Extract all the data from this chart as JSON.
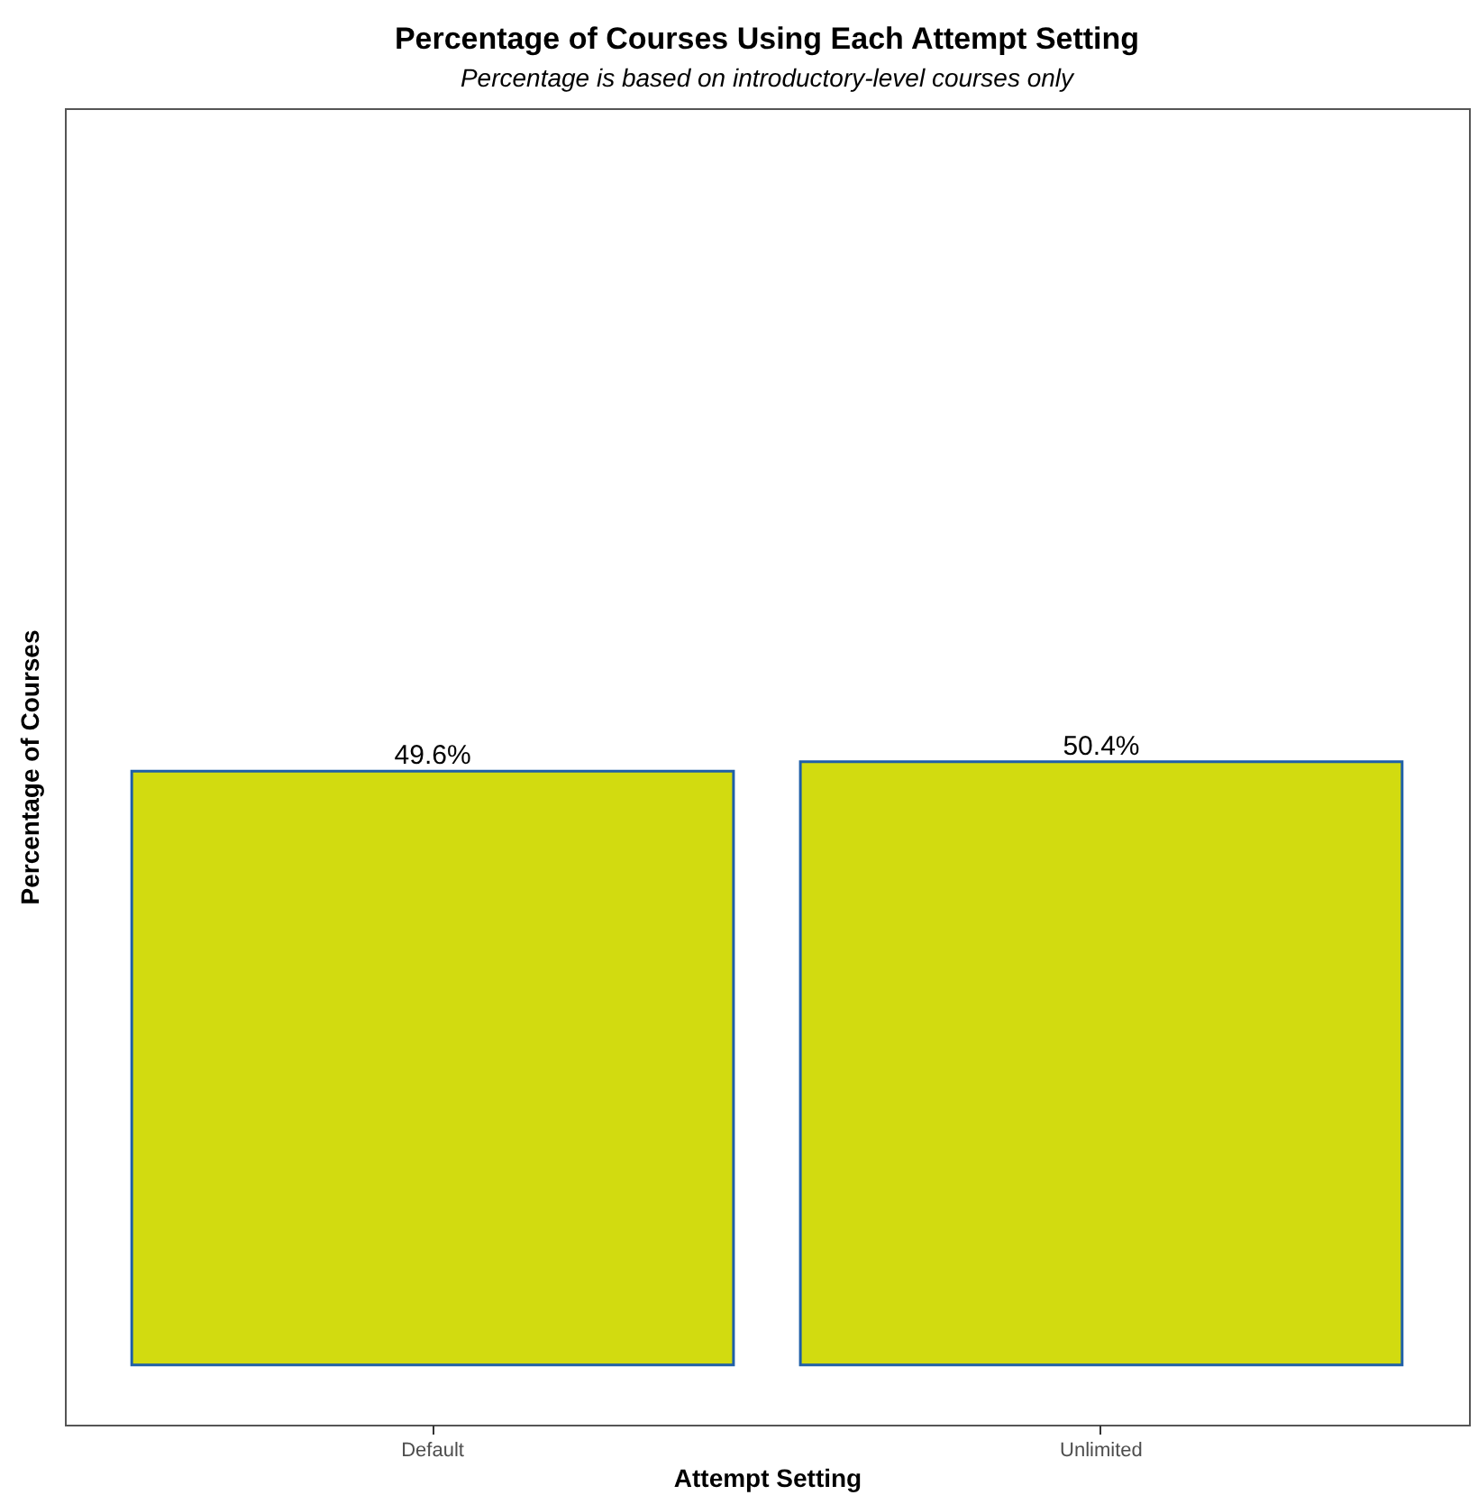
{
  "chart_data": {
    "type": "bar",
    "title": "Percentage of Courses Using Each Attempt Setting",
    "subtitle": "Percentage is based on introductory-level courses only",
    "xlabel": "Attempt Setting",
    "ylabel": "Percentage of Courses",
    "categories": [
      "Default",
      "Unlimited"
    ],
    "values": [
      49.6,
      50.4
    ],
    "value_labels": [
      "49.6%",
      "50.4%"
    ],
    "color": "#d2db10",
    "ylim": [
      -5,
      105
    ],
    "tick_labels": "x",
    "grid": false
  }
}
